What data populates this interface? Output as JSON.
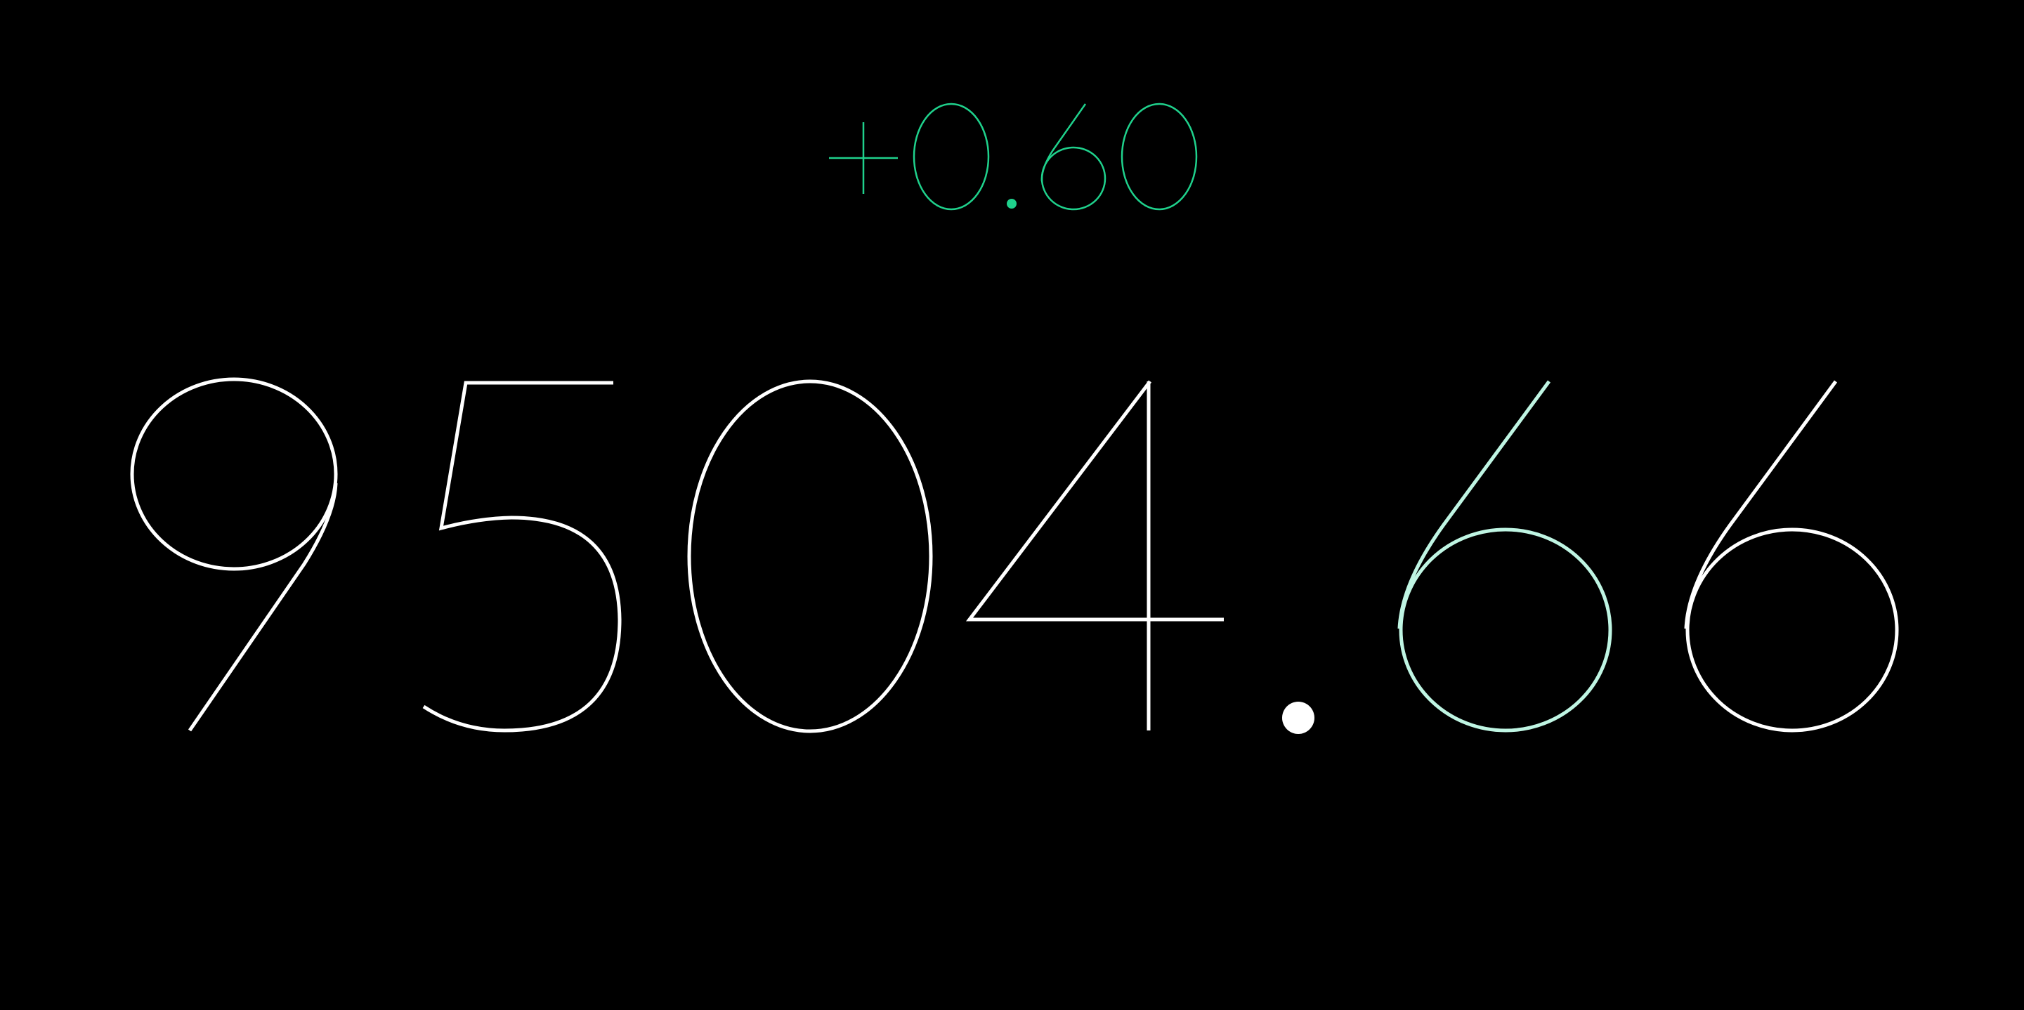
{
  "ticker": {
    "change": "+0.60",
    "price": "9504.66",
    "colors": {
      "background": "#000000",
      "change": "#1fd18c",
      "price": "#ffffff",
      "price_highlight": "#bff5e3"
    },
    "highlighted_digit_index": 5
  }
}
